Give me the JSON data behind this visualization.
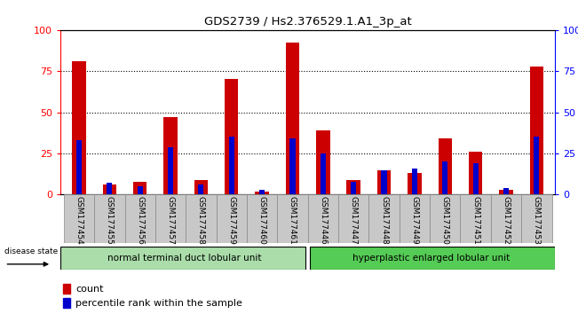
{
  "title": "GDS2739 / Hs2.376529.1.A1_3p_at",
  "samples": [
    "GSM177454",
    "GSM177455",
    "GSM177456",
    "GSM177457",
    "GSM177458",
    "GSM177459",
    "GSM177460",
    "GSM177461",
    "GSM177446",
    "GSM177447",
    "GSM177448",
    "GSM177449",
    "GSM177450",
    "GSM177451",
    "GSM177452",
    "GSM177453"
  ],
  "count_values": [
    81,
    6,
    8,
    47,
    9,
    70,
    2,
    92,
    39,
    9,
    15,
    13,
    34,
    26,
    3,
    78
  ],
  "percentile_values": [
    33,
    7,
    5,
    29,
    6,
    35,
    3,
    34,
    25,
    8,
    15,
    16,
    20,
    19,
    4,
    35
  ],
  "group1_label": "normal terminal duct lobular unit",
  "group2_label": "hyperplastic enlarged lobular unit",
  "group1_count": 8,
  "group2_count": 8,
  "disease_state_label": "disease state",
  "count_color": "#cc0000",
  "percentile_color": "#0000cc",
  "group1_color": "#aaddaa",
  "group2_color": "#55cc55",
  "red_bar_width": 0.45,
  "blue_bar_width": 0.18,
  "ylim": [
    0,
    100
  ],
  "yticks": [
    0,
    25,
    50,
    75,
    100
  ],
  "legend_count_label": "count",
  "legend_percentile_label": "percentile rank within the sample",
  "bg_color": "#ffffff",
  "xticklabel_bg": "#c8c8c8"
}
